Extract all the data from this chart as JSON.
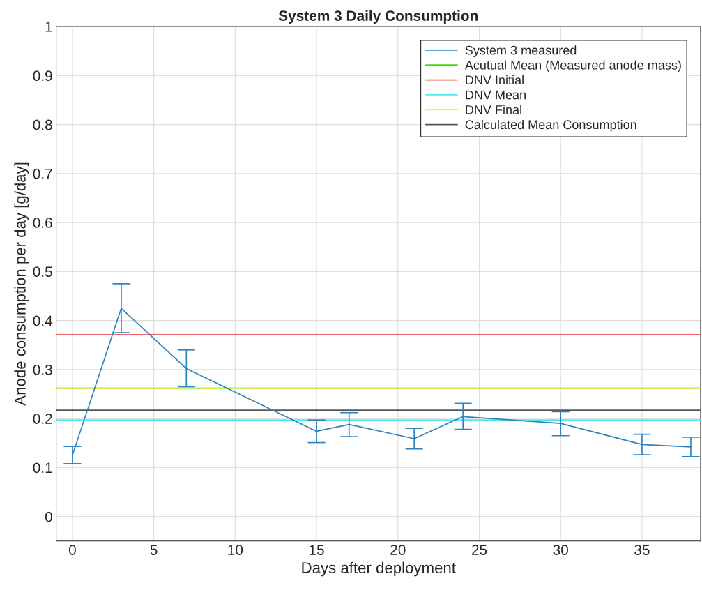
{
  "chart_data": {
    "type": "line",
    "title": "System 3 Daily Consumption",
    "xlabel": "Days after deployment",
    "ylabel": "Anode consumption per day [g/day]",
    "x": [
      0,
      3,
      7,
      15,
      17,
      21,
      24,
      30,
      35,
      38
    ],
    "series": [
      {
        "name": "System 3 measured",
        "color": "#2b84c0",
        "values": [
          0.125,
          0.425,
          0.302,
          0.174,
          0.188,
          0.159,
          0.204,
          0.19,
          0.147,
          0.142
        ],
        "errors": [
          [
            0.108,
            0.143
          ],
          [
            0.375,
            0.475
          ],
          [
            0.265,
            0.34
          ],
          [
            0.151,
            0.197
          ],
          [
            0.163,
            0.212
          ],
          [
            0.138,
            0.18
          ],
          [
            0.178,
            0.231
          ],
          [
            0.165,
            0.214
          ],
          [
            0.126,
            0.168
          ],
          [
            0.122,
            0.162
          ]
        ]
      }
    ],
    "ref_lines": [
      {
        "axis": "y",
        "value": 0.262,
        "label": "Acutual Mean (Measured anode mass)",
        "color": "#44dd00"
      },
      {
        "axis": "y",
        "value": 0.371,
        "label": "DNV Initial",
        "color": "#f06060"
      },
      {
        "axis": "y",
        "value": 0.197,
        "label": "DNV Mean",
        "color": "#55e8f0"
      },
      {
        "axis": "y",
        "value": 0.262,
        "label": "DNV Final",
        "color": "#f5f040"
      },
      {
        "axis": "y",
        "value": 0.217,
        "label": "Calculated Mean Consumption",
        "color": "#555555"
      }
    ],
    "xlim": [
      -1,
      38.6
    ],
    "ylim": [
      -0.05,
      1
    ],
    "xticks": [
      0,
      5,
      10,
      15,
      20,
      25,
      30,
      35
    ],
    "yticks": [
      0,
      0.1,
      0.2,
      0.3,
      0.4,
      0.5,
      0.6,
      0.7,
      0.8,
      0.9,
      1
    ],
    "grid": true,
    "legend": "top right",
    "marker": "none",
    "line_style": "solid"
  }
}
